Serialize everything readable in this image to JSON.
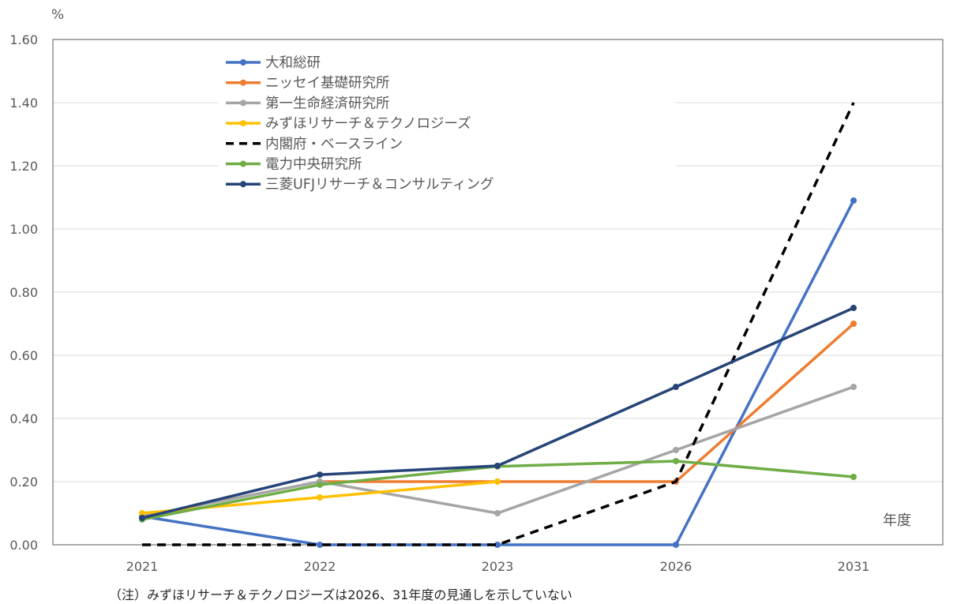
{
  "chart_data": {
    "type": "line",
    "y_unit_label": "%",
    "x_unit_label": "年度",
    "categories": [
      "2021",
      "2022",
      "2023",
      "2026",
      "2031"
    ],
    "ylim": [
      0,
      1.6
    ],
    "y_ticks": [
      "0.00",
      "0.20",
      "0.40",
      "0.60",
      "0.80",
      "1.00",
      "1.20",
      "1.40",
      "1.60"
    ],
    "grid": true,
    "legend_position": "top-left",
    "series": [
      {
        "name": "大和総研",
        "color": "#4472C4",
        "dashed": false,
        "markers": true,
        "values": [
          0.09,
          0.0,
          0.0,
          0.0,
          1.09
        ]
      },
      {
        "name": "ニッセイ基礎研究所",
        "color": "#ED7D31",
        "dashed": false,
        "markers": true,
        "values": [
          null,
          0.2,
          0.2,
          0.2,
          0.7
        ]
      },
      {
        "name": "第一生命経済研究所",
        "color": "#A5A5A5",
        "dashed": false,
        "markers": true,
        "values": [
          0.09,
          0.2,
          0.1,
          0.3,
          0.5
        ]
      },
      {
        "name": "みずほリサーチ＆テクノロジーズ",
        "color": "#FFC000",
        "dashed": false,
        "markers": true,
        "values": [
          0.1,
          0.15,
          0.2,
          null,
          null
        ]
      },
      {
        "name": "内閣府・ベースライン",
        "color": "#000000",
        "dashed": true,
        "markers": false,
        "values": [
          0.0,
          0.0,
          0.0,
          0.2,
          1.4
        ]
      },
      {
        "name": "電力中央研究所",
        "color": "#70AD47",
        "dashed": false,
        "markers": true,
        "values": [
          0.08,
          0.19,
          0.248,
          0.265,
          0.215
        ]
      },
      {
        "name": "三菱UFJリサーチ＆コンサルティング",
        "color": "#264478",
        "dashed": false,
        "markers": true,
        "values": [
          0.085,
          0.222,
          0.25,
          0.5,
          0.75
        ]
      }
    ]
  },
  "footnote": "（注）みずほリサーチ＆テクノロジーズは2026、31年度の見通しを示していない"
}
